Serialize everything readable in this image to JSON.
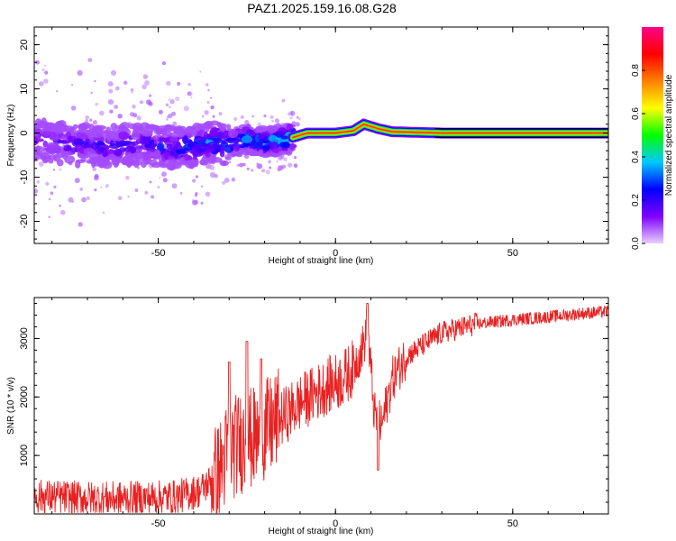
{
  "figure_title": "PAZ1.2025.159.16.08.G28",
  "chart_data": [
    {
      "type": "heatmap",
      "xlabel": "Height of straight line (km)",
      "ylabel": "Frequency (Hz)",
      "xlim": [
        -85,
        77
      ],
      "ylim": [
        -25,
        24
      ],
      "x_ticks": [
        -50,
        0,
        50
      ],
      "y_ticks": [
        -20,
        -10,
        0,
        10,
        20
      ],
      "x_tick_labels": [
        "-50",
        "0",
        "50"
      ],
      "y_tick_labels": [
        "-20",
        "-10",
        "0",
        "10",
        "20"
      ],
      "colorbar": {
        "label": "Normalized spectral amplitude",
        "range": [
          0,
          1
        ],
        "ticks": [
          0.0,
          0.2,
          0.4,
          0.6,
          0.8
        ],
        "tick_labels": [
          "0.0",
          "0.2",
          "0.4",
          "0.6",
          "0.8"
        ],
        "colors": [
          "#e8d0ff",
          "#8000ff",
          "#0000ff",
          "#00c8ff",
          "#00ff00",
          "#ffff00",
          "#ff8000",
          "#ff0000",
          "#ff0088"
        ]
      },
      "ridge": [
        {
          "x": -85,
          "f": -1.5,
          "amp": 0.25
        },
        {
          "x": -75,
          "f": -2.5,
          "amp": 0.28
        },
        {
          "x": -65,
          "f": -3.0,
          "amp": 0.3
        },
        {
          "x": -55,
          "f": -2.5,
          "amp": 0.3
        },
        {
          "x": -45,
          "f": -3.5,
          "amp": 0.35
        },
        {
          "x": -40,
          "f": -3.0,
          "amp": 0.38
        },
        {
          "x": -35,
          "f": -2.0,
          "amp": 0.42
        },
        {
          "x": -30,
          "f": -2.5,
          "amp": 0.4
        },
        {
          "x": -25,
          "f": -1.5,
          "amp": 0.45
        },
        {
          "x": -20,
          "f": -2.0,
          "amp": 0.45
        },
        {
          "x": -15,
          "f": -1.5,
          "amp": 0.5
        },
        {
          "x": -12,
          "f": -1.0,
          "amp": 0.55
        },
        {
          "x": -8,
          "f": 0.0,
          "amp": 0.75
        },
        {
          "x": 0,
          "f": 0.0,
          "amp": 0.8
        },
        {
          "x": 5,
          "f": 0.5,
          "amp": 0.8
        },
        {
          "x": 8,
          "f": 2.0,
          "amp": 0.75
        },
        {
          "x": 12,
          "f": 1.0,
          "amp": 0.78
        },
        {
          "x": 16,
          "f": 0.3,
          "amp": 0.82
        },
        {
          "x": 30,
          "f": 0.0,
          "amp": 0.85
        },
        {
          "x": 77,
          "f": 0.0,
          "amp": 0.85
        }
      ]
    },
    {
      "type": "line",
      "xlabel": "Height of straight line (km)",
      "ylabel": "SNR (10 * v/v)",
      "xlim": [
        -85,
        77
      ],
      "ylim": [
        0,
        3700
      ],
      "x_ticks": [
        -50,
        0,
        50
      ],
      "y_ticks": [
        1000,
        2000,
        3000
      ],
      "x_tick_labels": [
        "-50",
        "0",
        "50"
      ],
      "y_tick_labels": [
        "1000",
        "2000",
        "3000"
      ],
      "color": "#e82020",
      "x": [
        -85,
        -75,
        -65,
        -55,
        -45,
        -38,
        -33,
        -30,
        -26,
        -22,
        -18,
        -14,
        -10,
        -6,
        -2,
        2,
        5,
        8,
        9,
        11,
        13,
        16,
        20,
        25,
        30,
        40,
        50,
        60,
        70,
        77
      ],
      "values": [
        300,
        280,
        260,
        270,
        290,
        400,
        700,
        1100,
        1250,
        1300,
        1500,
        1700,
        1900,
        2050,
        2200,
        2300,
        2500,
        2900,
        3200,
        1700,
        1500,
        2300,
        2700,
        2900,
        3100,
        3250,
        3320,
        3370,
        3430,
        3460
      ],
      "spikes": [
        {
          "x": -30,
          "y": 2600
        },
        {
          "x": -25,
          "y": 2950
        },
        {
          "x": -21,
          "y": 2650
        },
        {
          "x": 9,
          "y": 3600
        },
        {
          "x": 12,
          "y": 750
        }
      ]
    }
  ]
}
